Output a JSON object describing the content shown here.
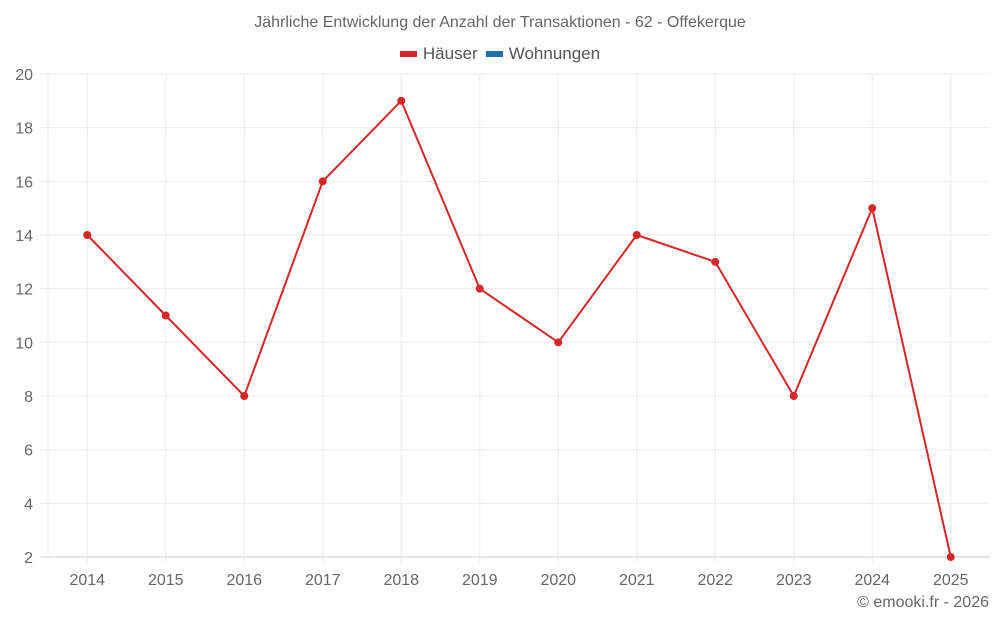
{
  "title": "Jährliche Entwicklung der Anzahl der Transaktionen - 62 - Offekerque",
  "legend": [
    {
      "label": "Häuser",
      "color": "#d62728"
    },
    {
      "label": "Wohnungen",
      "color": "#1f6fa8"
    }
  ],
  "credit": "© emooki.fr - 2026",
  "colors": {
    "line": "#d62728",
    "grid": "#ebebeb",
    "axis": "#cccccc"
  },
  "chart_data": {
    "type": "line",
    "title": "Jährliche Entwicklung der Anzahl der Transaktionen - 62 - Offekerque",
    "xlabel": "",
    "ylabel": "",
    "categories": [
      "2014",
      "2015",
      "2016",
      "2017",
      "2018",
      "2019",
      "2020",
      "2021",
      "2022",
      "2023",
      "2024",
      "2025"
    ],
    "series": [
      {
        "name": "Häuser",
        "color": "#d62728",
        "values": [
          14,
          11,
          8,
          16,
          19,
          12,
          10,
          14,
          13,
          8,
          15,
          2
        ]
      },
      {
        "name": "Wohnungen",
        "color": "#1f6fa8",
        "values": []
      }
    ],
    "yticks": [
      2,
      4,
      6,
      8,
      10,
      12,
      14,
      16,
      18,
      20
    ],
    "ylim": [
      2,
      20
    ],
    "grid": true,
    "legend_position": "top"
  }
}
